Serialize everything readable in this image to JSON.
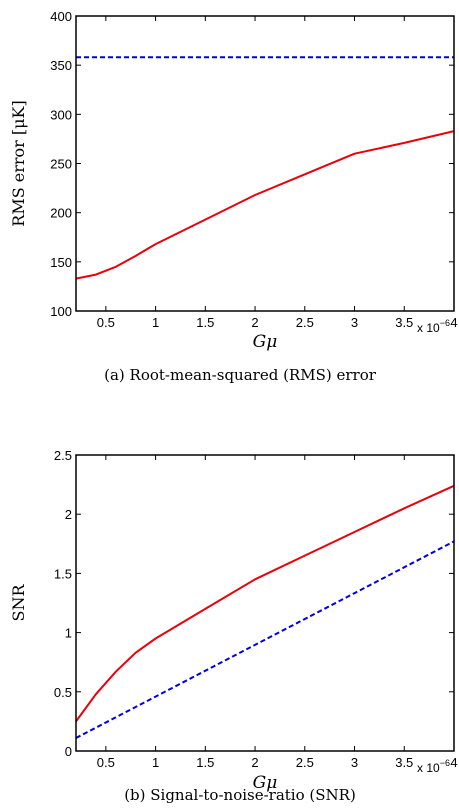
{
  "chart_data": [
    {
      "type": "line",
      "caption": "(a)  Root-mean-squared (RMS) error",
      "xlabel": "Gμ",
      "ylabel": "RMS error [μK]",
      "x_exponent": "x 10",
      "x_exponent_power": "−6",
      "xlim": [
        0.2,
        4
      ],
      "ylim": [
        100,
        400
      ],
      "xticks": [
        0.5,
        1,
        1.5,
        2,
        2.5,
        3,
        3.5,
        4
      ],
      "xtick_labels": [
        "0.5",
        "1",
        "1.5",
        "2",
        "2.5",
        "3",
        "3.5",
        "4"
      ],
      "yticks": [
        100,
        150,
        200,
        250,
        300,
        350,
        400
      ],
      "ytick_labels": [
        "100",
        "150",
        "200",
        "250",
        "300",
        "350",
        "400"
      ],
      "series": [
        {
          "color": "#e8000b",
          "style": "solid",
          "x": [
            0.2,
            0.4,
            0.6,
            0.8,
            0.9,
            1.0,
            1.5,
            2.0,
            2.5,
            3.0,
            3.5,
            4.0
          ],
          "y": [
            133,
            137,
            145,
            156,
            162,
            168,
            193,
            218,
            239,
            260,
            271,
            283
          ]
        },
        {
          "color": "#0000dd",
          "style": "dashed",
          "x": [
            0.2,
            4.0
          ],
          "y": [
            358,
            358
          ]
        }
      ]
    },
    {
      "type": "line",
      "caption": "(b)  Signal-to-noise-ratio (SNR)",
      "xlabel": "Gμ",
      "ylabel": "SNR",
      "x_exponent": "x 10",
      "x_exponent_power": "−6",
      "xlim": [
        0.2,
        4
      ],
      "ylim": [
        0,
        2.5
      ],
      "xticks": [
        0.5,
        1,
        1.5,
        2,
        2.5,
        3,
        3.5,
        4
      ],
      "xtick_labels": [
        "0.5",
        "1",
        "1.5",
        "2",
        "2.5",
        "3",
        "3.5",
        "4"
      ],
      "yticks": [
        0,
        0.5,
        1,
        1.5,
        2,
        2.5
      ],
      "ytick_labels": [
        "0",
        "0.5",
        "1",
        "1.5",
        "2",
        "2.5"
      ],
      "series": [
        {
          "color": "#e8000b",
          "style": "solid",
          "x": [
            0.2,
            0.4,
            0.6,
            0.8,
            1.0,
            1.5,
            2.0,
            2.5,
            3.0,
            3.5,
            4.0
          ],
          "y": [
            0.25,
            0.48,
            0.67,
            0.83,
            0.95,
            1.2,
            1.45,
            1.65,
            1.85,
            2.05,
            2.24
          ]
        },
        {
          "color": "#0000dd",
          "style": "dashed",
          "x": [
            0.2,
            4.0
          ],
          "y": [
            0.11,
            1.77
          ]
        }
      ]
    }
  ]
}
